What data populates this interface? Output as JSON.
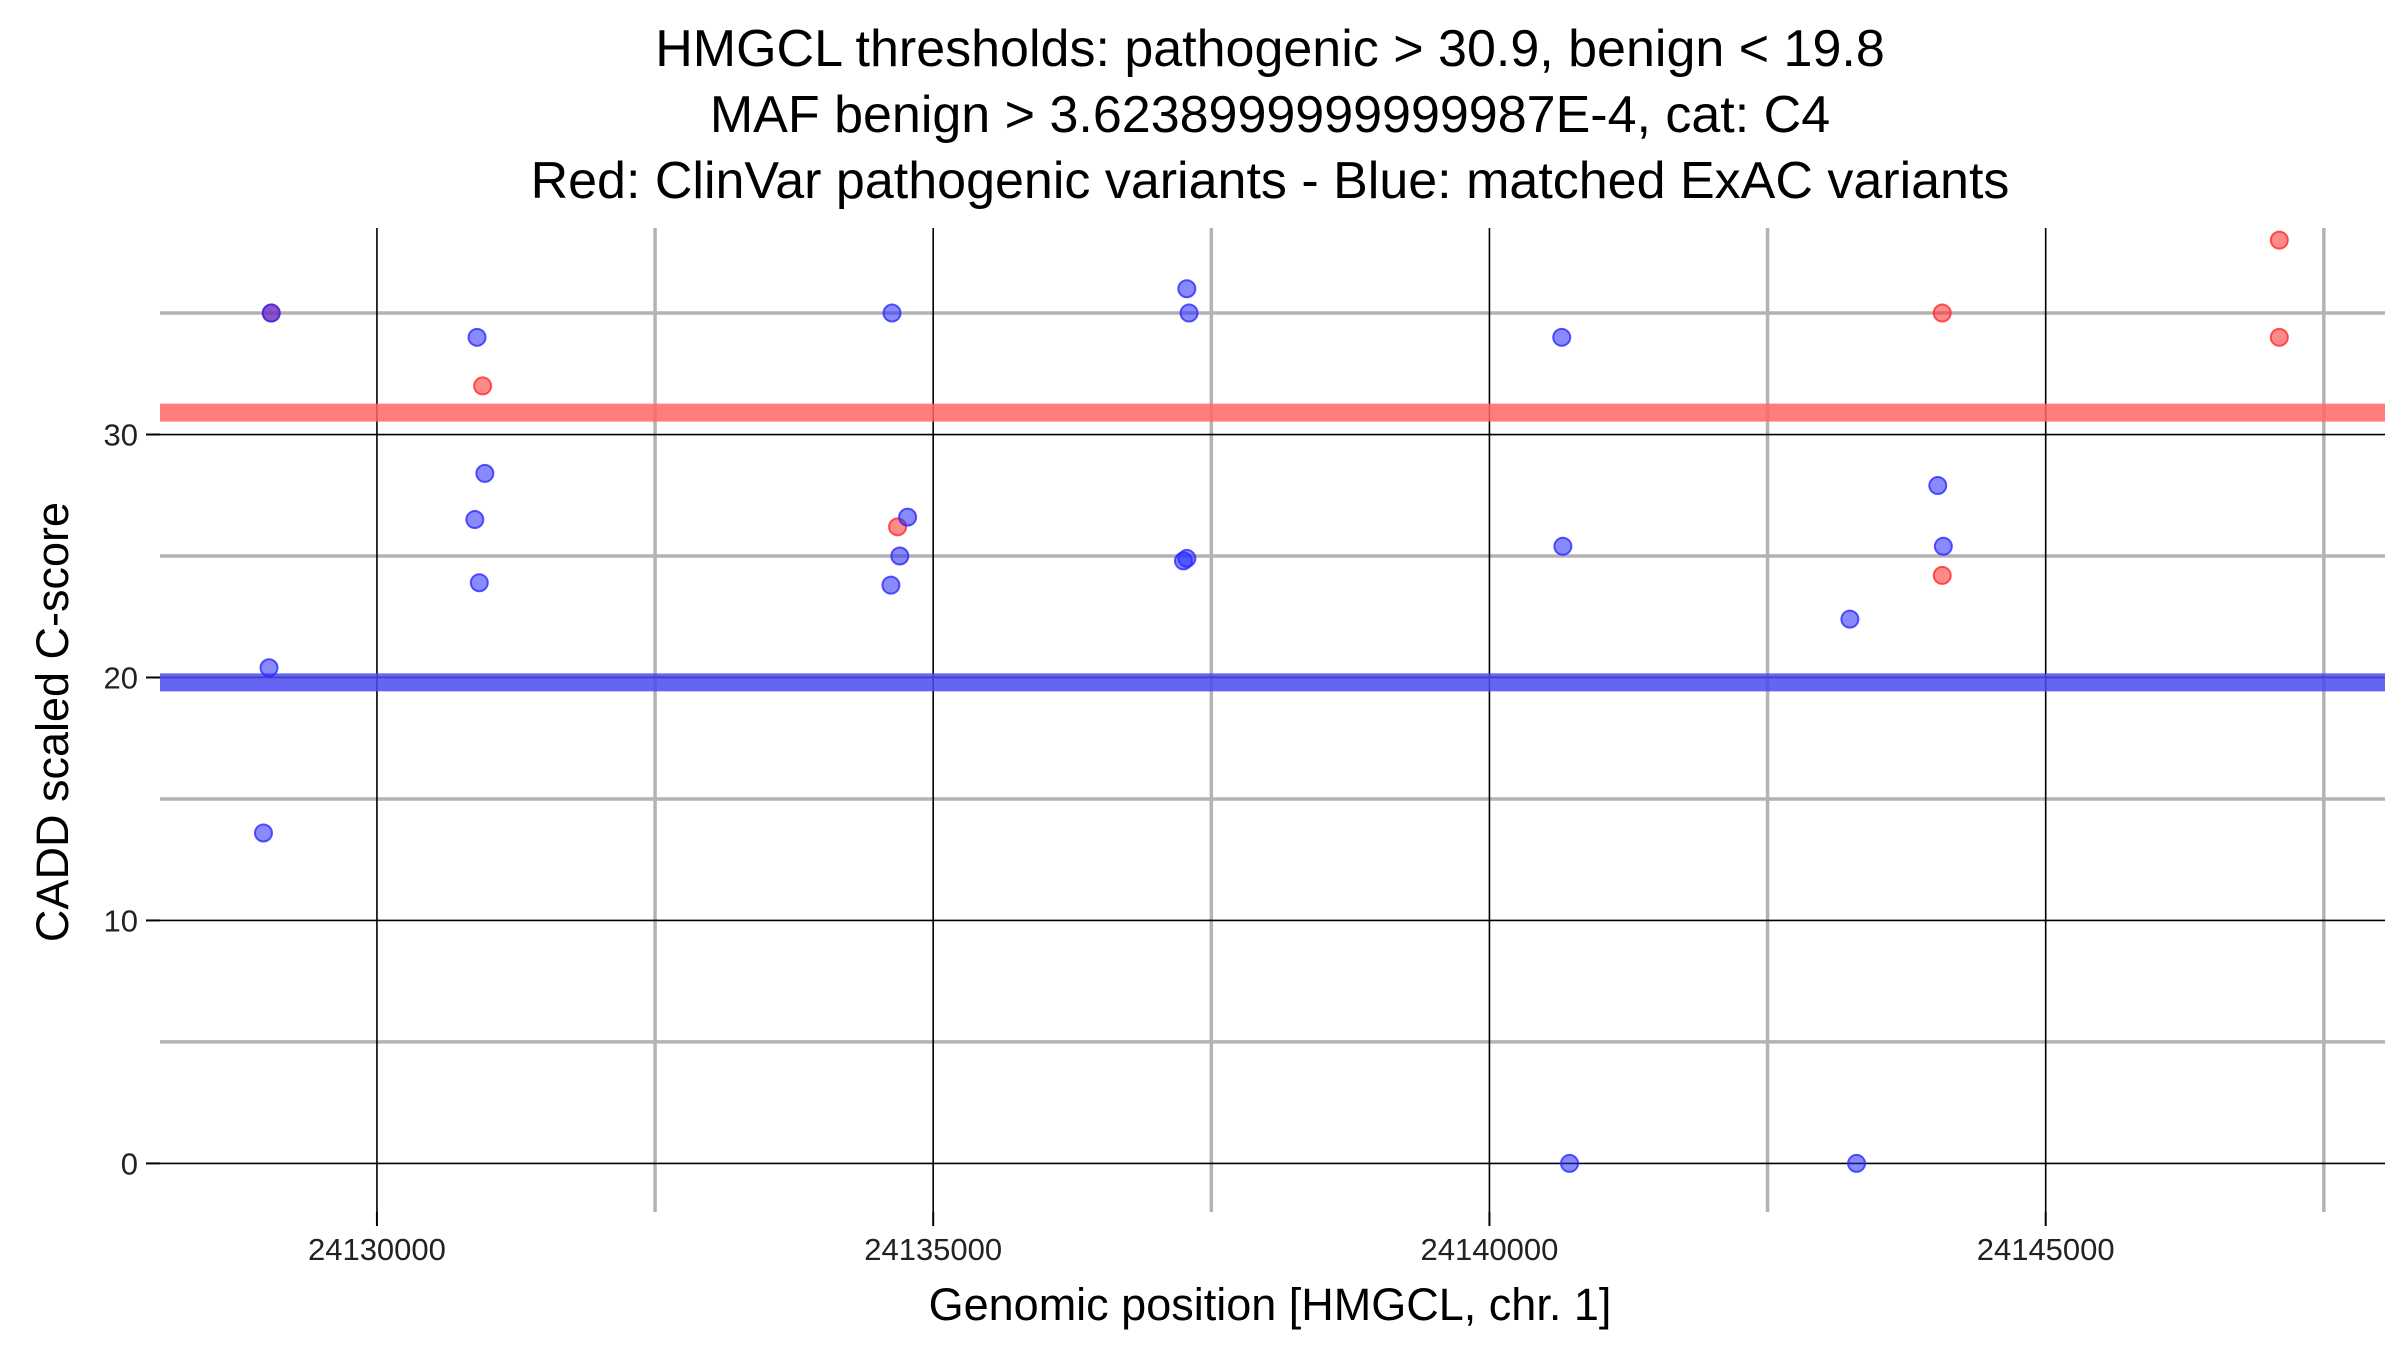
{
  "chart_data": {
    "type": "scatter",
    "title_lines": [
      "HMGCL thresholds: pathogenic > 30.9, benign < 19.8",
      "MAF benign > 3.6238999999999987E-4, cat: C4",
      "Red: ClinVar pathogenic variants - Blue: matched ExAC variants"
    ],
    "xlabel": "Genomic position [HMGCL, chr. 1]",
    "ylabel": "CADD scaled C-score",
    "xlim": [
      24128050,
      24148050
    ],
    "ylim": [
      -2,
      38.5
    ],
    "x_ticks": [
      24130000,
      24135000,
      24140000,
      24145000
    ],
    "x_tick_labels": [
      "24130000",
      "24135000",
      "24140000",
      "24145000"
    ],
    "x_minor_ticks": [
      24132500,
      24137500,
      24142500,
      24147500
    ],
    "y_ticks": [
      0,
      10,
      20,
      30
    ],
    "y_tick_labels": [
      "0",
      "10",
      "20",
      "30"
    ],
    "y_minor_ticks": [
      5,
      15,
      25,
      35
    ],
    "grid": true,
    "thresholds": [
      {
        "name": "pathogenic",
        "value": 30.9,
        "color": "#ff6666"
      },
      {
        "name": "benign",
        "value": 19.8,
        "color": "#4a4aee"
      }
    ],
    "series": [
      {
        "color": "#ff2a2a",
        "x": [
          24129050,
          24130950,
          24134680,
          24144070,
          24144070,
          24147100,
          24147100
        ],
        "y": [
          35,
          32,
          26.2,
          35,
          24.2,
          38,
          34
        ]
      },
      {
        "color": "#2a2aff",
        "x": [
          24129050,
          24129030,
          24128980,
          24130900,
          24130880,
          24130920,
          24130970,
          24134630,
          24134700,
          24134620,
          24134770,
          24137280,
          24137300,
          24137250,
          24137280,
          24140650,
          24140660,
          24140720,
          24143240,
          24143300,
          24144030,
          24144080
        ],
        "y": [
          35,
          20.4,
          13.6,
          34,
          26.5,
          23.9,
          28.4,
          35,
          25,
          23.8,
          26.6,
          36,
          35,
          24.8,
          24.9,
          34,
          25.4,
          0,
          22.4,
          0,
          27.9,
          25.4
        ]
      }
    ]
  }
}
